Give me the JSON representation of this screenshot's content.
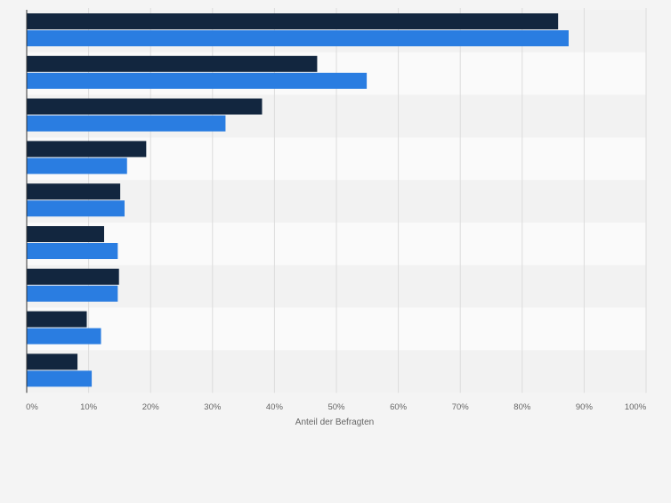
{
  "chart_data": {
    "type": "bar",
    "orientation": "horizontal",
    "categories": [
      "",
      "",
      "",
      "",
      "",
      "",
      "",
      "",
      ""
    ],
    "series": [
      {
        "values": [
          85.8,
          46.9,
          38.0,
          19.3,
          15.1,
          12.5,
          14.9,
          9.7,
          8.2
        ]
      },
      {
        "values": [
          87.5,
          54.9,
          32.1,
          16.2,
          15.8,
          14.7,
          14.7,
          12.0,
          10.5
        ]
      }
    ],
    "xlim": [
      0,
      100
    ],
    "x_ticks": [
      "0%",
      "10%",
      "20%",
      "30%",
      "40%",
      "50%",
      "60%",
      "70%",
      "80%",
      "90%",
      "100%"
    ],
    "xlabel": "Anteil der Befragten",
    "ylabel": "",
    "title": "",
    "grid": true,
    "legend": "none"
  },
  "colors": {
    "series": [
      "#12263f",
      "#2a7de1"
    ],
    "band_odd": "#f2f2f2",
    "band_even": "#fafafa",
    "grid": "#dcdcdc",
    "axis": "#333333",
    "text": "#666666",
    "page_bg": "#f4f4f4"
  }
}
